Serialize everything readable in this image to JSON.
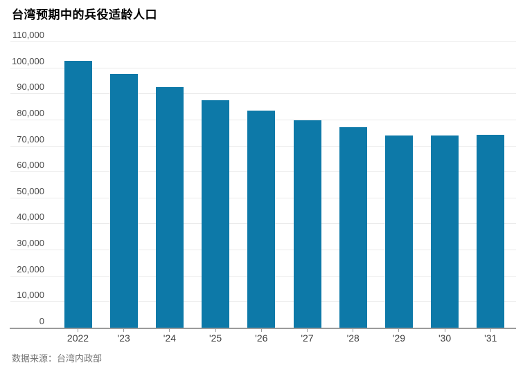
{
  "page": {
    "title": "台湾预期中的兵役适龄人口",
    "source": "数据来源：台湾内政部"
  },
  "chart_data": {
    "type": "bar",
    "title": "台湾预期中的兵役适龄人口",
    "categories": [
      "2022",
      "'23",
      "'24",
      "'25",
      "'26",
      "'27",
      "'28",
      "'29",
      "'30",
      "'31"
    ],
    "values": [
      102500,
      97400,
      92400,
      87500,
      83500,
      79700,
      77000,
      73800,
      73800,
      74200
    ],
    "xlabel": "",
    "ylabel": "",
    "ylim": [
      0,
      110000
    ],
    "ytick_step": 10000,
    "ytick_labels": [
      "0",
      "10,000",
      "20,000",
      "30,000",
      "40,000",
      "50,000",
      "60,000",
      "70,000",
      "80,000",
      "90,000",
      "100,000",
      "110,000"
    ],
    "grid": true,
    "legend": false,
    "source": "数据来源：台湾内政部",
    "colors": {
      "bar": "#0d79a8",
      "gridline": "#e9e9e9",
      "axis_line": "#9b9b9b",
      "tick_mark": "#999999",
      "y_label": "#4a4a4a",
      "x_label": "#404040",
      "title": "#000000",
      "source_text": "#767676",
      "background": "#ffffff"
    }
  }
}
